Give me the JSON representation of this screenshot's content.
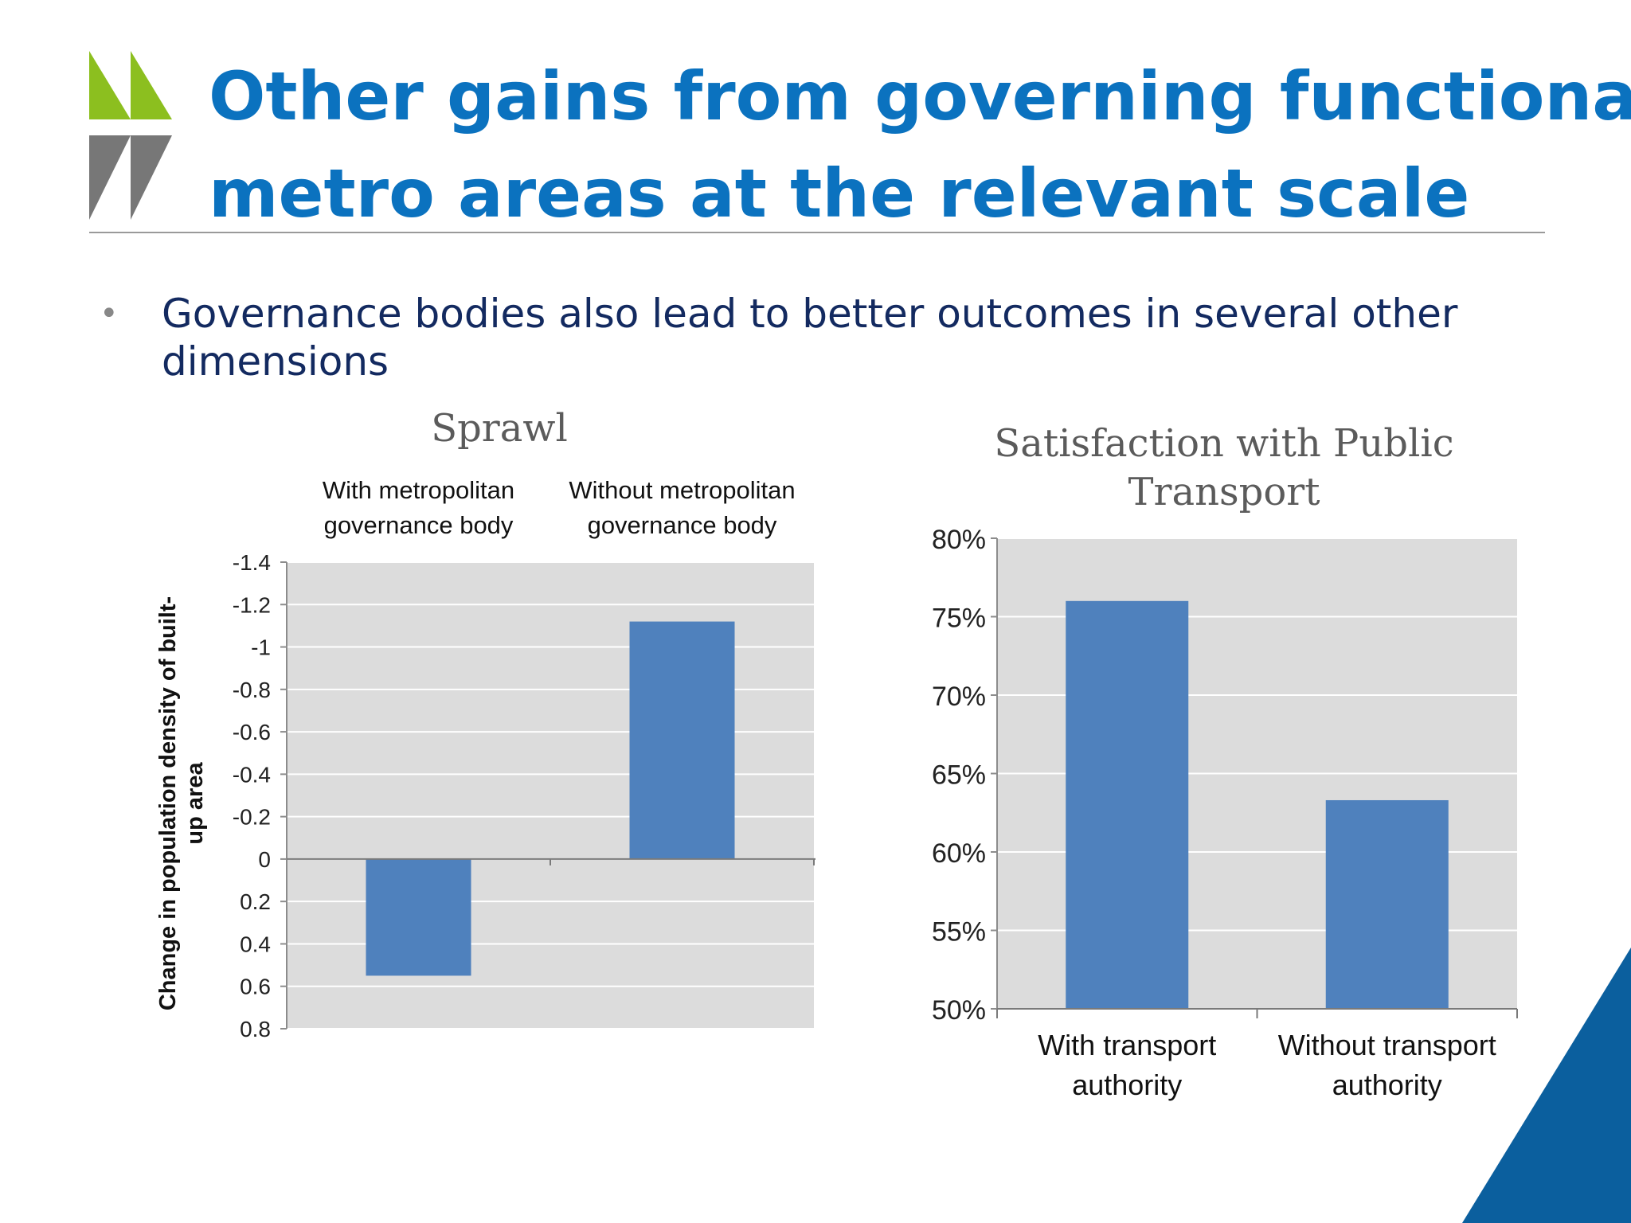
{
  "slide": {
    "title_lines": [
      "Other gains from governing functional",
      "metro areas at the relevant scale"
    ],
    "bullet": "Governance bodies also lead to better outcomes in several other dimensions",
    "colors": {
      "title": "#0b72bf",
      "bullet_text": "#132a60",
      "bar": "#4f81bd",
      "plot_bg": "#dcdcdc",
      "logo_green": "#8cbf1f",
      "logo_gray": "#777777",
      "corner_blue": "#0b5f9e"
    }
  },
  "chart_data": [
    {
      "type": "bar",
      "title": "Sprawl",
      "categories": [
        [
          "With metropolitan",
          "governance body"
        ],
        [
          "Without metropolitan",
          "governance body"
        ]
      ],
      "category_position": "top",
      "values": [
        0.55,
        -1.12
      ],
      "ylabel": [
        "Change in population density of built-",
        "up area"
      ],
      "yaxis_inverted": true,
      "ylim": [
        -1.4,
        0.8
      ],
      "yticks": [
        -1.4,
        -1.2,
        -1,
        -0.8,
        -0.6,
        -0.4,
        -0.2,
        0,
        0.2,
        0.4,
        0.6,
        0.8
      ],
      "ytick_labels": [
        "-1.4",
        "-1.2",
        "-1",
        "-0.8",
        "-0.6",
        "-0.4",
        "-0.2",
        "0",
        "0.2",
        "0.4",
        "0.6",
        "0.8"
      ],
      "grid": true,
      "legend": "none"
    },
    {
      "type": "bar",
      "title": "Satisfaction with Public Transport",
      "categories": [
        [
          "With transport",
          "authority"
        ],
        [
          "Without transport",
          "authority"
        ]
      ],
      "category_position": "bottom",
      "values": [
        76,
        63.3
      ],
      "ylim": [
        50,
        80
      ],
      "yticks": [
        50,
        55,
        60,
        65,
        70,
        75,
        80
      ],
      "ytick_labels": [
        "50%",
        "55%",
        "60%",
        "65%",
        "70%",
        "75%",
        "80%"
      ],
      "grid": true,
      "legend": "none"
    }
  ]
}
